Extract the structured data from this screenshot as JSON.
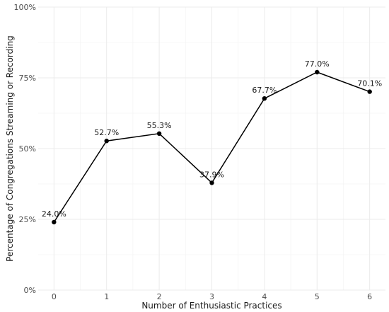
{
  "chart_data": {
    "type": "line",
    "title": "",
    "xlabel": "Number of Enthusiastic Practices",
    "ylabel": "Percentage of Congregations Streaming or Recording",
    "x": [
      0,
      1,
      2,
      3,
      4,
      5,
      6
    ],
    "series": [
      {
        "values": [
          24.0,
          52.7,
          55.3,
          37.9,
          67.7,
          77.0,
          70.1
        ],
        "labels": [
          "24.0%",
          "52.7%",
          "55.3%",
          "37.9%",
          "67.7%",
          "77.0%",
          "70.1%"
        ]
      }
    ],
    "xticks": [
      "0",
      "1",
      "2",
      "3",
      "4",
      "5",
      "6"
    ],
    "yticks": [
      "0%",
      "25%",
      "50%",
      "75%",
      "100%"
    ],
    "ylim": [
      0,
      100
    ],
    "xlim": [
      -0.3,
      6.3
    ],
    "grid": true,
    "colors": {
      "line": "#000000",
      "grid": "#ebebeb",
      "background": "#ffffff"
    }
  }
}
